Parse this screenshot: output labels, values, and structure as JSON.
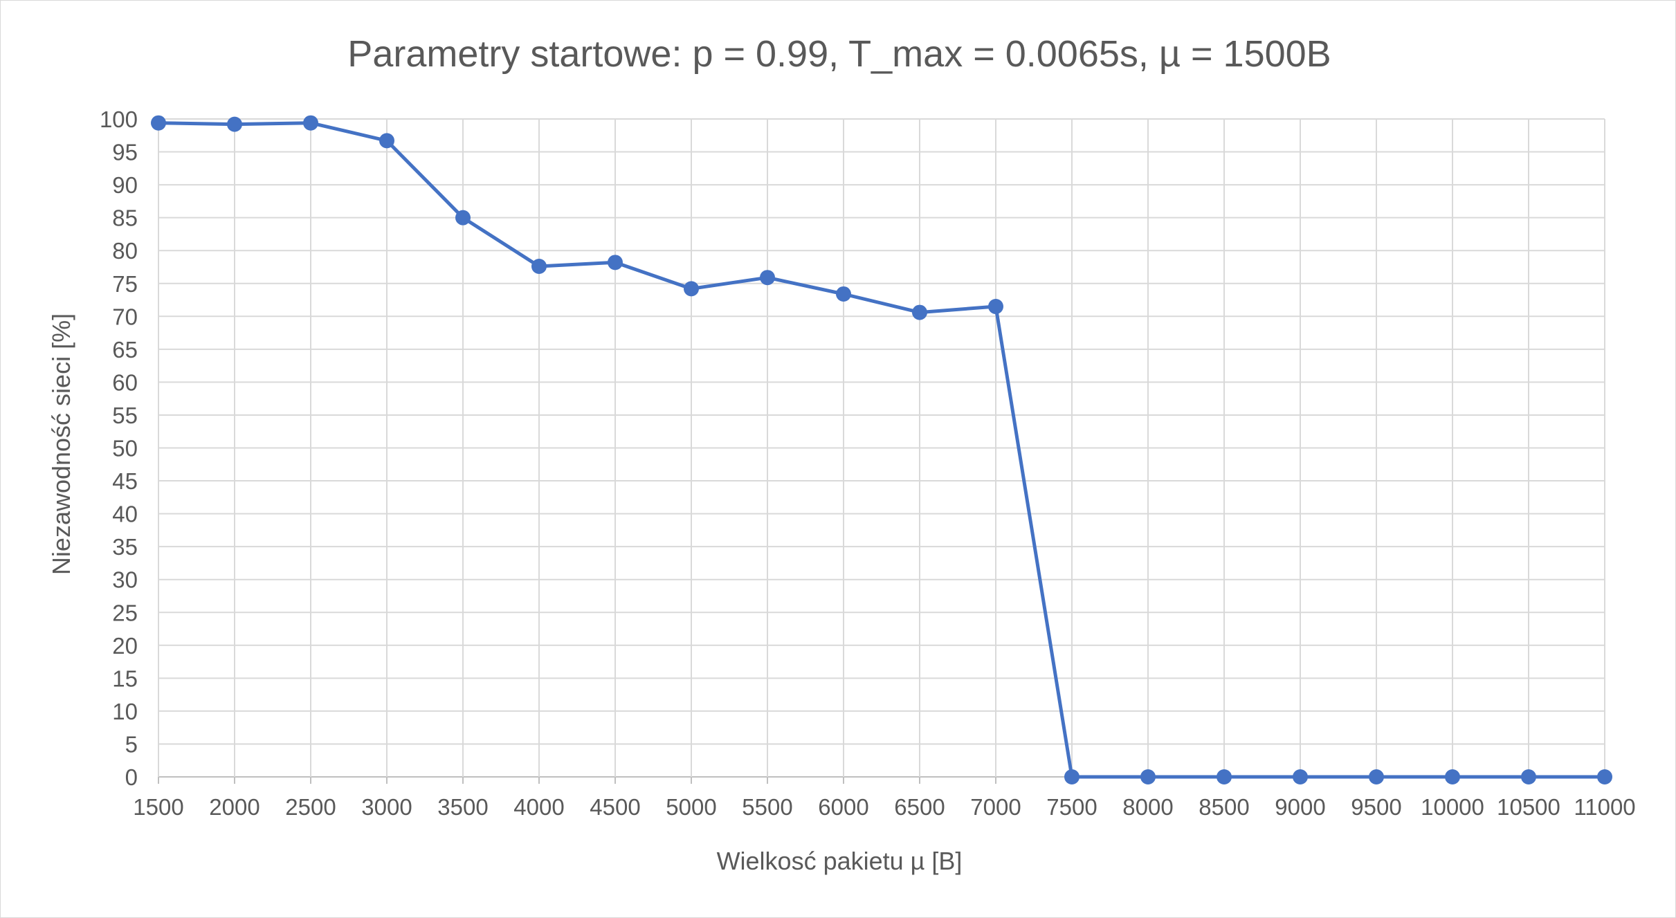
{
  "chart_data": {
    "type": "line",
    "title": "Parametry startowe: p = 0.99, T_max = 0.0065s, µ = 1500B",
    "xlabel": "Wielkosć pakietu µ [B]",
    "ylabel": "Niezawodność sieci [%]",
    "categories": [
      "1500",
      "2000",
      "2500",
      "3000",
      "3500",
      "4000",
      "4500",
      "5000",
      "5500",
      "6000",
      "6500",
      "7000",
      "7500",
      "8000",
      "8500",
      "9000",
      "9500",
      "10000",
      "10500",
      "11000"
    ],
    "y_ticks": [
      "0",
      "5",
      "10",
      "15",
      "20",
      "25",
      "30",
      "35",
      "40",
      "45",
      "50",
      "55",
      "60",
      "65",
      "70",
      "75",
      "80",
      "85",
      "90",
      "95",
      "100"
    ],
    "ylim": [
      0,
      100
    ],
    "grid": true,
    "legend": "none",
    "series": [
      {
        "values": [
          99.4,
          99.2,
          99.4,
          96.7,
          85.0,
          77.6,
          78.2,
          74.2,
          75.9,
          73.4,
          70.6,
          71.5,
          0,
          0,
          0,
          0,
          0,
          0,
          0,
          0
        ],
        "color": "#4472c4"
      }
    ]
  }
}
